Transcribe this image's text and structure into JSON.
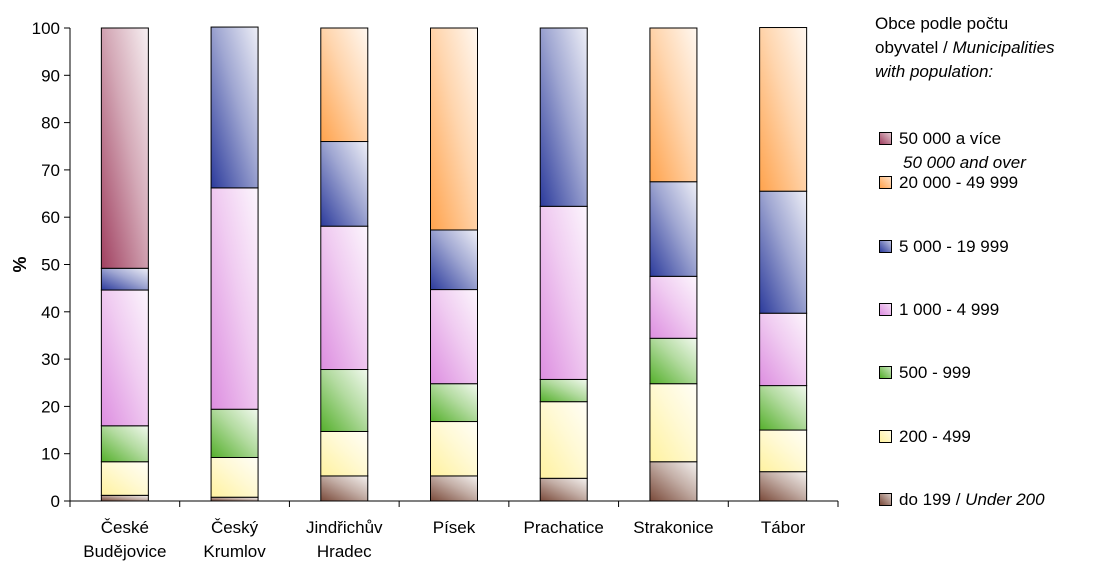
{
  "chart_data": {
    "type": "bar",
    "stacked": true,
    "percent": true,
    "ylabel": "%",
    "ylim": [
      0,
      100
    ],
    "yticks": [
      0,
      10,
      20,
      30,
      40,
      50,
      60,
      70,
      80,
      90,
      100
    ],
    "grid": false,
    "legend_placement": "right",
    "categories": [
      [
        "České",
        "Budějovice"
      ],
      [
        "Český",
        "Krumlov"
      ],
      [
        "Jindřichův",
        "Hradec"
      ],
      [
        "Písek"
      ],
      [
        "Prachatice"
      ],
      [
        "Strakonice"
      ],
      [
        "Tábor"
      ]
    ],
    "series": [
      {
        "name": "do 199 /",
        "name_en": "Under 200",
        "color": "#7a4a3a",
        "values": [
          1.2,
          0.8,
          5.3,
          5.3,
          4.8,
          8.3,
          6.2
        ]
      },
      {
        "name": "200 - 499",
        "color": "#fff2a0",
        "values": [
          7.1,
          8.4,
          9.4,
          11.5,
          16.2,
          16.5,
          8.8
        ]
      },
      {
        "name": "500 - 999",
        "color": "#55b02c",
        "values": [
          7.6,
          10.2,
          13.1,
          8.0,
          4.7,
          9.6,
          9.4
        ]
      },
      {
        "name": "1 000 - 4 999",
        "color": "#dd8ee0",
        "values": [
          28.7,
          46.8,
          30.3,
          19.9,
          36.6,
          13.1,
          15.3
        ]
      },
      {
        "name": "5 000 - 19 999",
        "color": "#2c3b9c",
        "values": [
          4.6,
          34.0,
          17.9,
          12.6,
          37.7,
          20.0,
          25.8
        ]
      },
      {
        "name": "20 000 - 49 999",
        "color": "#ffa34d",
        "values": [
          0,
          0,
          24.0,
          42.7,
          0,
          32.5,
          34.6
        ]
      },
      {
        "name": "50 000  a více",
        "name_en": "50 000 and over",
        "color": "#a04060",
        "values": [
          50.8,
          0,
          0,
          0,
          0,
          0,
          0
        ]
      }
    ]
  },
  "legend": {
    "title_line1": "Obce podle počtu",
    "title_line2_cz": "obyvatel / ",
    "title_line2_en": "Municipalities",
    "title_line3_en": "with population:"
  }
}
